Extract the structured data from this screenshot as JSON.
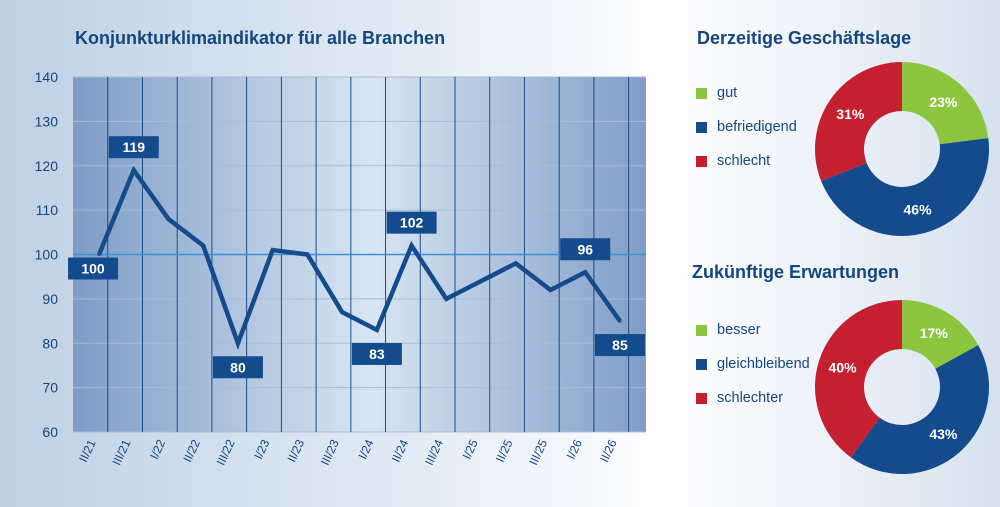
{
  "line_chart": {
    "title": "Konjunkturklimaindikator für alle Branchen"
  },
  "donut_current": {
    "title": "Derzeitige Geschäftslage"
  },
  "donut_future": {
    "title": "Zukünftige Erwartungen"
  },
  "colors": {
    "line": "#134b8c",
    "reference_line": "#3d8fd6",
    "label_box": "#134b8c",
    "axis_text": "#14467f",
    "green": "#8cc63f",
    "blue": "#134b8c",
    "red": "#c4202f"
  },
  "chart_data": [
    {
      "type": "line",
      "title": "Konjunkturklimaindikator für alle Branchen",
      "x": [
        "II/21",
        "III/21",
        "I/22",
        "II/22",
        "III/22",
        "I/23",
        "II/23",
        "III/23",
        "I/24",
        "II/24",
        "III/24",
        "I/25",
        "II/25",
        "III/25",
        "I/26",
        "II/26"
      ],
      "series": [
        {
          "values": [
            100,
            119,
            108,
            102,
            80,
            101,
            100,
            87,
            83,
            102,
            90,
            94,
            98,
            92,
            96,
            85
          ]
        }
      ],
      "data_labels": [
        {
          "index": 0,
          "value": "100",
          "position": "below"
        },
        {
          "index": 1,
          "value": "119",
          "position": "above"
        },
        {
          "index": 4,
          "value": "80",
          "position": "below"
        },
        {
          "index": 8,
          "value": "83",
          "position": "below"
        },
        {
          "index": 9,
          "value": "102",
          "position": "above"
        },
        {
          "index": 14,
          "value": "96",
          "position": "above"
        },
        {
          "index": 15,
          "value": "85",
          "position": "below"
        }
      ],
      "reference_line": 100,
      "ylim": [
        60,
        140
      ],
      "y_ticks": [
        60,
        70,
        80,
        90,
        100,
        110,
        120,
        130,
        140
      ],
      "grid": true,
      "xlabel": "",
      "ylabel": ""
    },
    {
      "type": "pie",
      "variant": "donut",
      "title": "Derzeitige Geschäftslage",
      "categories": [
        "gut",
        "befriedigend",
        "schlecht"
      ],
      "values": [
        23,
        46,
        31
      ],
      "value_labels": [
        "23%",
        "46%",
        "31%"
      ],
      "colors": [
        "#8cc63f",
        "#134b8c",
        "#c4202f"
      ],
      "legend": "left"
    },
    {
      "type": "pie",
      "variant": "donut",
      "title": "Zukünftige Erwartungen",
      "categories": [
        "besser",
        "gleichbleibend",
        "schlechter"
      ],
      "values": [
        17,
        43,
        40
      ],
      "value_labels": [
        "17%",
        "43%",
        "40%"
      ],
      "colors": [
        "#8cc63f",
        "#134b8c",
        "#c4202f"
      ],
      "legend": "left"
    }
  ]
}
